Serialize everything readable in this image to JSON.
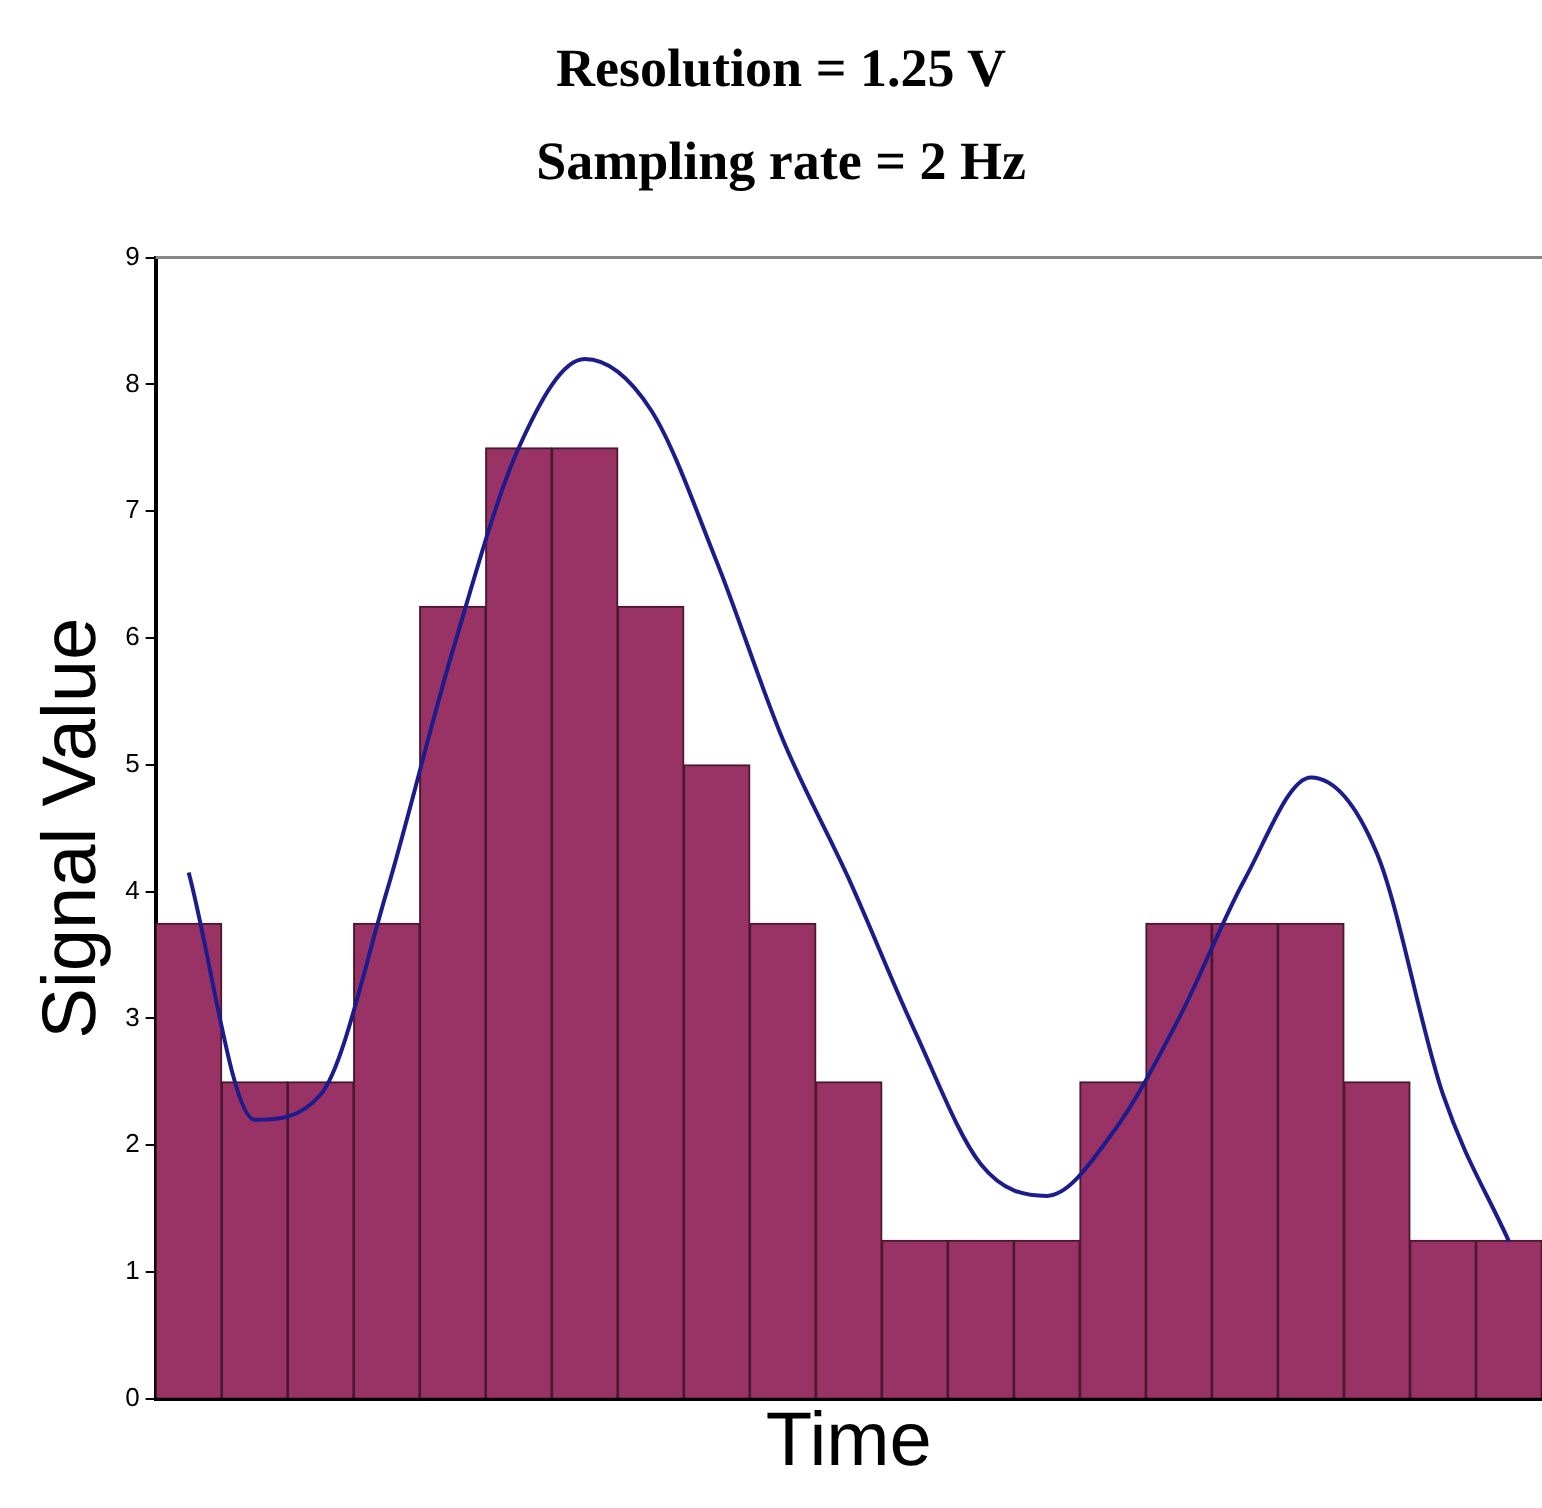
{
  "chart_data": {
    "type": "bar",
    "title": "Resolution = 1.25 V",
    "subtitle": "Sampling rate = 2 Hz",
    "xlabel": "Time",
    "ylabel": "Signal Value",
    "categories": [
      null,
      null,
      null,
      null,
      null,
      null,
      null,
      null,
      null,
      null,
      null,
      null,
      null,
      null,
      null,
      null,
      null,
      null,
      null,
      null,
      null
    ],
    "series": [
      {
        "color": "#993366",
        "values": [
          3.75,
          2.5,
          2.5,
          3.75,
          6.25,
          7.5,
          7.5,
          6.25,
          5,
          3.75,
          2.5,
          1.25,
          1.25,
          1.25,
          2.5,
          3.75,
          3.75,
          3.75,
          2.5,
          1.25,
          1.25
        ]
      },
      {
        "type": "line",
        "color": "#1c1c8c",
        "values": [
          4.15,
          2.2,
          2.4,
          4.0,
          5.9,
          7.5,
          8.2,
          7.8,
          6.6,
          5.2,
          4.1,
          2.9,
          1.85,
          1.6,
          2.1,
          3.0,
          4.1,
          4.9,
          4.3,
          2.4,
          1.24
        ]
      }
    ],
    "ylim": [
      0,
      9
    ],
    "yticks": [
      0,
      1,
      2,
      3,
      4,
      5,
      6,
      7,
      8,
      9
    ],
    "tick_labels": "y",
    "legend": false,
    "grid": false,
    "marker": "none"
  }
}
